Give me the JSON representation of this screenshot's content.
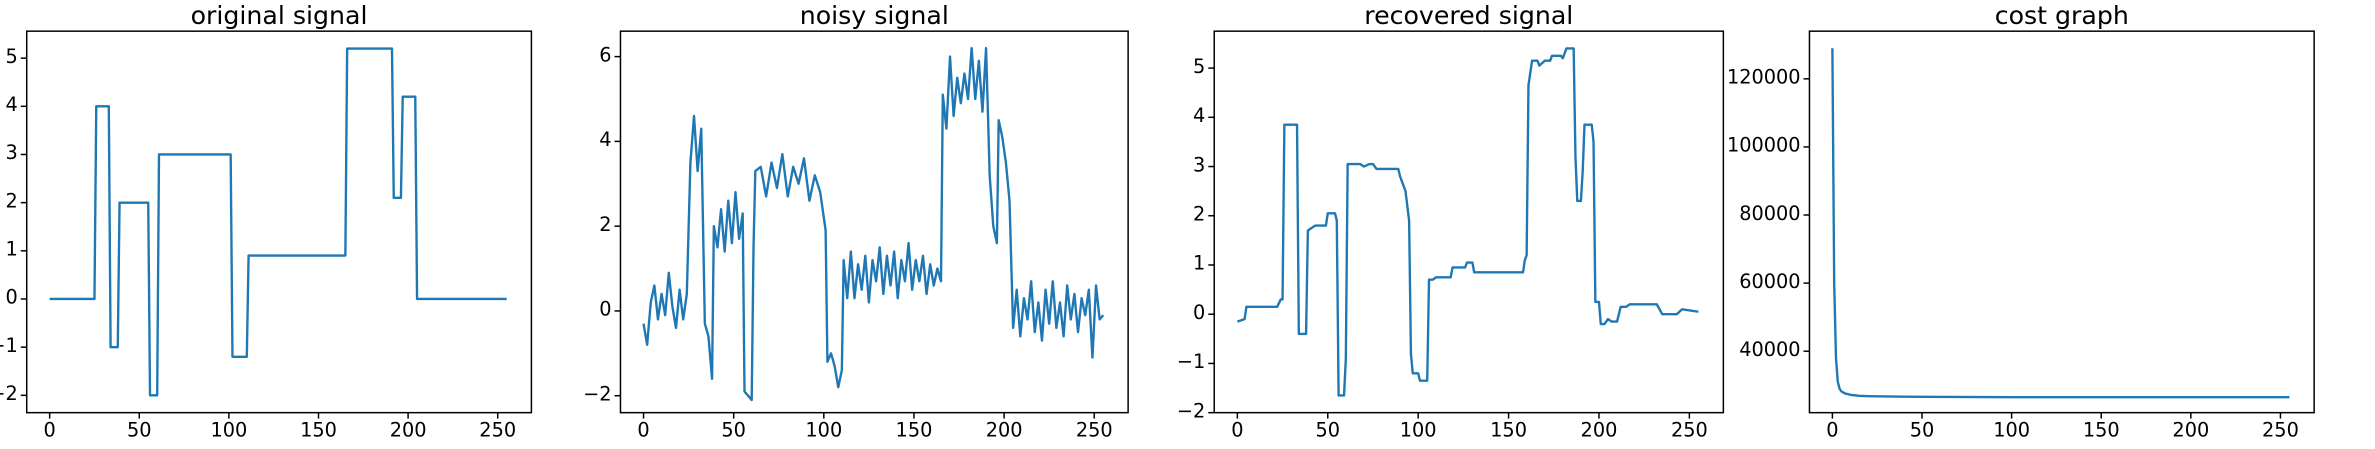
{
  "chart_data": [
    {
      "type": "line",
      "title": "original signal",
      "xlabel": "",
      "ylabel": "",
      "xlim": [
        -12.8,
        268.8
      ],
      "ylim": [
        -2.36,
        5.56
      ],
      "xticks": [
        0,
        50,
        100,
        150,
        200,
        250
      ],
      "yticks": [
        -2,
        -1,
        0,
        1,
        2,
        3,
        4,
        5
      ],
      "grid": false,
      "legend": "none",
      "color": "#1f77b4",
      "series": [
        {
          "points": [
            [
              0,
              0
            ],
            [
              25,
              0
            ],
            [
              26,
              4
            ],
            [
              33,
              4
            ],
            [
              34,
              -1
            ],
            [
              38,
              -1
            ],
            [
              39,
              2
            ],
            [
              55,
              2
            ],
            [
              56,
              -2
            ],
            [
              60,
              -2
            ],
            [
              61,
              3
            ],
            [
              101,
              3
            ],
            [
              102,
              -1.2
            ],
            [
              110,
              -1.2
            ],
            [
              111,
              0.9
            ],
            [
              165,
              0.9
            ],
            [
              166,
              5.2
            ],
            [
              191,
              5.2
            ],
            [
              192,
              2.1
            ],
            [
              196,
              2.1
            ],
            [
              197,
              4.2
            ],
            [
              204,
              4.2
            ],
            [
              205,
              0
            ],
            [
              255,
              0
            ]
          ]
        }
      ]
    },
    {
      "type": "line",
      "title": "noisy signal",
      "xlabel": "",
      "ylabel": "",
      "xlim": [
        -12.8,
        268.8
      ],
      "ylim": [
        -2.4,
        6.6
      ],
      "xticks": [
        0,
        50,
        100,
        150,
        200,
        250
      ],
      "yticks": [
        -2,
        0,
        2,
        4,
        6
      ],
      "grid": false,
      "legend": "none",
      "color": "#1f77b4",
      "series": [
        {
          "points": [
            [
              0,
              -0.3
            ],
            [
              2,
              -0.8
            ],
            [
              4,
              0.2
            ],
            [
              6,
              0.6
            ],
            [
              8,
              -0.2
            ],
            [
              10,
              0.4
            ],
            [
              12,
              -0.1
            ],
            [
              14,
              0.9
            ],
            [
              16,
              0.1
            ],
            [
              18,
              -0.4
            ],
            [
              20,
              0.5
            ],
            [
              22,
              -0.2
            ],
            [
              24,
              0.4
            ],
            [
              26,
              3.5
            ],
            [
              28,
              4.6
            ],
            [
              30,
              3.3
            ],
            [
              32,
              4.3
            ],
            [
              34,
              -0.3
            ],
            [
              36,
              -0.6
            ],
            [
              38,
              -1.6
            ],
            [
              39,
              2.0
            ],
            [
              41,
              1.5
            ],
            [
              43,
              2.4
            ],
            [
              45,
              1.4
            ],
            [
              47,
              2.6
            ],
            [
              49,
              1.6
            ],
            [
              51,
              2.8
            ],
            [
              53,
              1.7
            ],
            [
              55,
              2.3
            ],
            [
              56,
              -1.9
            ],
            [
              58,
              -2.0
            ],
            [
              60,
              -2.1
            ],
            [
              61,
              1.5
            ],
            [
              62,
              3.3
            ],
            [
              65,
              3.4
            ],
            [
              68,
              2.7
            ],
            [
              71,
              3.5
            ],
            [
              74,
              2.9
            ],
            [
              77,
              3.7
            ],
            [
              80,
              2.7
            ],
            [
              83,
              3.4
            ],
            [
              86,
              3.0
            ],
            [
              89,
              3.6
            ],
            [
              92,
              2.6
            ],
            [
              95,
              3.2
            ],
            [
              98,
              2.8
            ],
            [
              100,
              2.2
            ],
            [
              101,
              1.9
            ],
            [
              102,
              -1.2
            ],
            [
              104,
              -1.0
            ],
            [
              106,
              -1.3
            ],
            [
              108,
              -1.8
            ],
            [
              110,
              -1.4
            ],
            [
              111,
              1.2
            ],
            [
              113,
              0.3
            ],
            [
              115,
              1.4
            ],
            [
              117,
              0.3
            ],
            [
              119,
              1.1
            ],
            [
              121,
              0.5
            ],
            [
              123,
              1.3
            ],
            [
              125,
              0.2
            ],
            [
              127,
              1.2
            ],
            [
              129,
              0.7
            ],
            [
              131,
              1.5
            ],
            [
              133,
              0.4
            ],
            [
              135,
              1.3
            ],
            [
              137,
              0.6
            ],
            [
              139,
              1.4
            ],
            [
              141,
              0.3
            ],
            [
              143,
              1.2
            ],
            [
              145,
              0.7
            ],
            [
              147,
              1.6
            ],
            [
              149,
              0.5
            ],
            [
              151,
              1.2
            ],
            [
              153,
              0.7
            ],
            [
              155,
              1.3
            ],
            [
              157,
              0.4
            ],
            [
              159,
              1.1
            ],
            [
              161,
              0.6
            ],
            [
              163,
              1.0
            ],
            [
              165,
              0.7
            ],
            [
              166,
              5.1
            ],
            [
              168,
              4.3
            ],
            [
              170,
              6.0
            ],
            [
              172,
              4.6
            ],
            [
              174,
              5.5
            ],
            [
              176,
              4.9
            ],
            [
              178,
              5.6
            ],
            [
              180,
              5.0
            ],
            [
              182,
              6.2
            ],
            [
              184,
              5.0
            ],
            [
              186,
              5.9
            ],
            [
              188,
              4.7
            ],
            [
              190,
              6.2
            ],
            [
              192,
              3.2
            ],
            [
              194,
              2.0
            ],
            [
              196,
              1.6
            ],
            [
              197,
              4.5
            ],
            [
              199,
              4.1
            ],
            [
              201,
              3.5
            ],
            [
              203,
              2.6
            ],
            [
              205,
              -0.4
            ],
            [
              207,
              0.5
            ],
            [
              209,
              -0.6
            ],
            [
              211,
              0.3
            ],
            [
              213,
              -0.2
            ],
            [
              215,
              0.7
            ],
            [
              217,
              -0.5
            ],
            [
              219,
              0.2
            ],
            [
              221,
              -0.7
            ],
            [
              223,
              0.5
            ],
            [
              225,
              -0.3
            ],
            [
              227,
              0.7
            ],
            [
              229,
              -0.4
            ],
            [
              231,
              0.2
            ],
            [
              233,
              -0.6
            ],
            [
              235,
              0.6
            ],
            [
              237,
              -0.2
            ],
            [
              239,
              0.4
            ],
            [
              241,
              -0.5
            ],
            [
              243,
              0.3
            ],
            [
              245,
              -0.1
            ],
            [
              247,
              0.5
            ],
            [
              249,
              -1.1
            ],
            [
              251,
              0.6
            ],
            [
              253,
              -0.2
            ],
            [
              255,
              -0.1
            ]
          ]
        }
      ]
    },
    {
      "type": "line",
      "title": "recovered signal",
      "xlabel": "",
      "ylabel": "",
      "xlim": [
        -12.8,
        268.8
      ],
      "ylim": [
        -2.0,
        5.75
      ],
      "xticks": [
        0,
        50,
        100,
        150,
        200,
        250
      ],
      "yticks": [
        -2,
        -1,
        0,
        1,
        2,
        3,
        4,
        5
      ],
      "grid": false,
      "legend": "none",
      "color": "#1f77b4",
      "series": [
        {
          "points": [
            [
              0,
              -0.15
            ],
            [
              4,
              -0.1
            ],
            [
              5,
              0.15
            ],
            [
              18,
              0.15
            ],
            [
              22,
              0.15
            ],
            [
              24,
              0.3
            ],
            [
              25,
              0.3
            ],
            [
              26,
              3.85
            ],
            [
              33,
              3.85
            ],
            [
              34,
              -0.4
            ],
            [
              38,
              -0.4
            ],
            [
              39,
              1.7
            ],
            [
              41,
              1.75
            ],
            [
              43,
              1.8
            ],
            [
              49,
              1.8
            ],
            [
              50,
              2.05
            ],
            [
              54,
              2.05
            ],
            [
              55,
              1.9
            ],
            [
              56,
              -1.65
            ],
            [
              59,
              -1.65
            ],
            [
              60,
              -0.9
            ],
            [
              61,
              3.05
            ],
            [
              68,
              3.05
            ],
            [
              70,
              3.0
            ],
            [
              73,
              3.05
            ],
            [
              75,
              3.05
            ],
            [
              77,
              2.95
            ],
            [
              89,
              2.95
            ],
            [
              90,
              2.8
            ],
            [
              91,
              2.7
            ],
            [
              93,
              2.5
            ],
            [
              95,
              1.9
            ],
            [
              96,
              -0.8
            ],
            [
              97,
              -1.2
            ],
            [
              100,
              -1.2
            ],
            [
              101,
              -1.35
            ],
            [
              105,
              -1.35
            ],
            [
              106,
              0.7
            ],
            [
              108,
              0.7
            ],
            [
              110,
              0.75
            ],
            [
              118,
              0.75
            ],
            [
              119,
              0.95
            ],
            [
              126,
              0.95
            ],
            [
              127,
              1.05
            ],
            [
              130,
              1.05
            ],
            [
              131,
              0.85
            ],
            [
              152,
              0.85
            ],
            [
              153,
              0.85
            ],
            [
              158,
              0.85
            ],
            [
              159,
              1.1
            ],
            [
              160,
              1.2
            ],
            [
              161,
              4.65
            ],
            [
              163,
              5.15
            ],
            [
              166,
              5.15
            ],
            [
              167,
              5.05
            ],
            [
              170,
              5.15
            ],
            [
              173,
              5.15
            ],
            [
              174,
              5.25
            ],
            [
              179,
              5.25
            ],
            [
              180,
              5.2
            ],
            [
              182,
              5.4
            ],
            [
              186,
              5.4
            ],
            [
              187,
              3.2
            ],
            [
              188,
              2.3
            ],
            [
              190,
              2.3
            ],
            [
              191,
              2.9
            ],
            [
              192,
              3.85
            ],
            [
              196,
              3.85
            ],
            [
              197,
              3.5
            ],
            [
              198,
              0.25
            ],
            [
              200,
              0.25
            ],
            [
              201,
              -0.2
            ],
            [
              203,
              -0.2
            ],
            [
              205,
              -0.1
            ],
            [
              207,
              -0.15
            ],
            [
              210,
              -0.15
            ],
            [
              212,
              0.15
            ],
            [
              215,
              0.15
            ],
            [
              217,
              0.2
            ],
            [
              232,
              0.2
            ],
            [
              235,
              0.0
            ],
            [
              243,
              0.0
            ],
            [
              246,
              0.1
            ],
            [
              255,
              0.05
            ]
          ]
        }
      ]
    },
    {
      "type": "line",
      "title": "cost graph",
      "xlabel": "",
      "ylabel": "",
      "xlim": [
        -12.8,
        268.8
      ],
      "ylim": [
        21950,
        134000
      ],
      "xticks": [
        0,
        50,
        100,
        150,
        200,
        250
      ],
      "yticks": [
        40000,
        60000,
        80000,
        100000,
        120000
      ],
      "grid": false,
      "legend": "none",
      "color": "#1f77b4",
      "series": [
        {
          "points": [
            [
              0,
              129000
            ],
            [
              1,
              60000
            ],
            [
              2,
              38000
            ],
            [
              3,
              31000
            ],
            [
              4,
              29000
            ],
            [
              5,
              28200
            ],
            [
              7,
              27600
            ],
            [
              10,
              27200
            ],
            [
              15,
              26900
            ],
            [
              20,
              26800
            ],
            [
              30,
              26700
            ],
            [
              50,
              26600
            ],
            [
              100,
              26500
            ],
            [
              150,
              26500
            ],
            [
              200,
              26500
            ],
            [
              255,
              26500
            ]
          ]
        }
      ]
    }
  ]
}
